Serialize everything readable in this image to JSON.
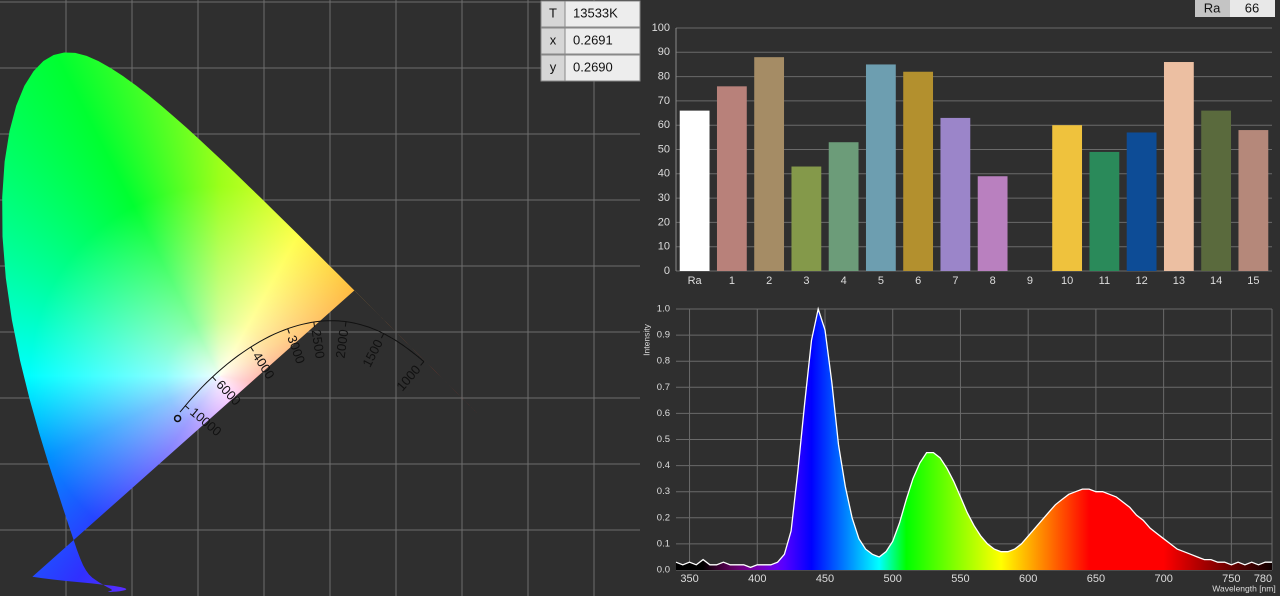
{
  "readout": {
    "rows": [
      [
        "T",
        "13533K"
      ],
      [
        "x",
        "0.2691"
      ],
      [
        "y",
        "0.2690"
      ]
    ]
  },
  "ra_badge": {
    "label": "Ra",
    "value": "66"
  },
  "cie": {
    "locus_temperatures": [
      10000,
      6000,
      4000,
      3000,
      2500,
      2000,
      1500,
      1000
    ]
  },
  "chart_data": [
    {
      "type": "bar",
      "categories": [
        "Ra",
        "1",
        "2",
        "3",
        "4",
        "5",
        "6",
        "7",
        "8",
        "9",
        "10",
        "11",
        "12",
        "13",
        "14",
        "15"
      ],
      "values": [
        66,
        76,
        88,
        43,
        53,
        85,
        82,
        63,
        39,
        null,
        60,
        49,
        57,
        86,
        66,
        58
      ],
      "colors": [
        "#ffffff",
        "#b8817a",
        "#a58c65",
        "#84994a",
        "#6c9c79",
        "#6d9eb0",
        "#b3902e",
        "#9b85c9",
        "#b980bf",
        null,
        "#efc23d",
        "#2a8a5a",
        "#0d4c96",
        "#ecbfa2",
        "#5a6a3d",
        "#b5887a"
      ],
      "ylim": [
        0,
        100
      ],
      "yticks": [
        0,
        10,
        20,
        30,
        40,
        50,
        60,
        70,
        80,
        90,
        100
      ],
      "grid": true
    },
    {
      "type": "line",
      "x_label": "Wavelength [nm]",
      "y_label": "Intensity",
      "x": [
        340,
        345,
        350,
        355,
        360,
        365,
        370,
        375,
        380,
        385,
        390,
        395,
        400,
        405,
        410,
        415,
        420,
        425,
        430,
        435,
        440,
        445,
        450,
        455,
        460,
        465,
        470,
        475,
        480,
        485,
        490,
        495,
        500,
        505,
        510,
        515,
        520,
        525,
        530,
        535,
        540,
        545,
        550,
        555,
        560,
        565,
        570,
        575,
        580,
        585,
        590,
        595,
        600,
        605,
        610,
        615,
        620,
        625,
        630,
        635,
        640,
        645,
        650,
        655,
        660,
        665,
        670,
        675,
        680,
        685,
        690,
        695,
        700,
        705,
        710,
        715,
        720,
        725,
        730,
        735,
        740,
        745,
        750,
        755,
        760,
        765,
        770,
        775,
        780
      ],
      "values": [
        0.03,
        0.02,
        0.03,
        0.02,
        0.04,
        0.02,
        0.02,
        0.03,
        0.02,
        0.02,
        0.02,
        0.01,
        0.02,
        0.02,
        0.02,
        0.03,
        0.06,
        0.15,
        0.38,
        0.64,
        0.88,
        1.0,
        0.92,
        0.72,
        0.48,
        0.32,
        0.2,
        0.12,
        0.08,
        0.06,
        0.05,
        0.07,
        0.11,
        0.18,
        0.27,
        0.35,
        0.41,
        0.45,
        0.45,
        0.43,
        0.39,
        0.34,
        0.28,
        0.22,
        0.17,
        0.13,
        0.1,
        0.08,
        0.07,
        0.07,
        0.08,
        0.1,
        0.13,
        0.16,
        0.19,
        0.22,
        0.25,
        0.27,
        0.29,
        0.3,
        0.31,
        0.31,
        0.3,
        0.3,
        0.29,
        0.28,
        0.26,
        0.24,
        0.21,
        0.19,
        0.16,
        0.14,
        0.12,
        0.1,
        0.08,
        0.07,
        0.06,
        0.05,
        0.04,
        0.04,
        0.03,
        0.03,
        0.02,
        0.03,
        0.02,
        0.03,
        0.02,
        0.03,
        0.03
      ],
      "color": "#ffffff",
      "fill": "spectrum",
      "xlim": [
        340,
        780
      ],
      "xticks": [
        350,
        400,
        450,
        500,
        550,
        600,
        650,
        700,
        750,
        780
      ],
      "ylim": [
        0,
        1.0
      ],
      "yticks": [
        {
          "value": 0,
          "label": "0.0"
        },
        0.1,
        0.2,
        0.3,
        0.4,
        0.5,
        0.6,
        0.7,
        0.8,
        0.9,
        {
          "value": 1,
          "label": "1.0"
        }
      ],
      "grid": true
    }
  ]
}
